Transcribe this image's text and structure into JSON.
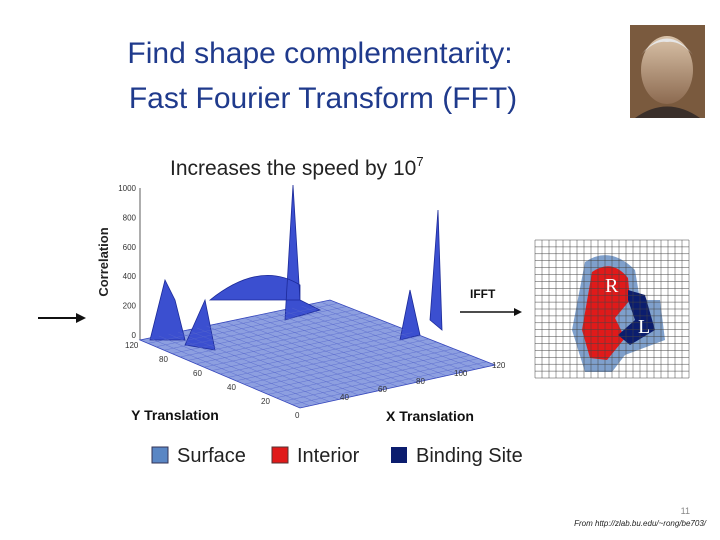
{
  "header": {
    "title_lines": [
      "Find shape complementarity:",
      "Fast Fourier Transform (FFT)"
    ]
  },
  "subtitle": {
    "text": "Increases the speed by 10",
    "superscript": "7"
  },
  "plot": {
    "z_label": "Correlation",
    "z_ticks": [
      "1000",
      "800",
      "600",
      "400",
      "200",
      "0"
    ],
    "y_label": "Y Translation",
    "y_ticks": [
      "120",
      "80",
      "60",
      "40",
      "20",
      "0"
    ],
    "x_label": "X Translation",
    "x_ticks": [
      "40",
      "60",
      "80",
      "100",
      "120"
    ]
  },
  "diagram": {
    "arrow_label": "IFFT",
    "receptor": "R",
    "ligand": "L"
  },
  "legend": [
    "Surface",
    "Interior",
    "Binding Site"
  ],
  "footer": {
    "page_number": "11",
    "source": "From http://zlab.bu.edu/~rong/be703/"
  }
}
